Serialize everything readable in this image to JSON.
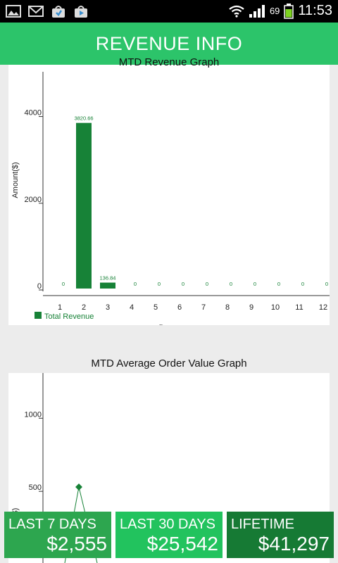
{
  "status_bar": {
    "battery": "69",
    "time": "11:53",
    "icons": [
      "gallery-icon",
      "gmail-icon",
      "store-icon",
      "store-update-icon",
      "wifi-icon",
      "signal-icon",
      "battery-icon"
    ]
  },
  "header": {
    "title": "REVENUE INFO"
  },
  "chart1": {
    "title": "MTD Revenue Graph",
    "chart_data": {
      "type": "bar",
      "title": "MTD Revenue Graph",
      "xlabel": "Days",
      "ylabel": "Amount($)",
      "ylim": [
        0,
        5000
      ],
      "yticks": [
        "0",
        "2000",
        "4000"
      ],
      "categories": [
        "1",
        "2",
        "3",
        "4",
        "5",
        "6",
        "7",
        "8",
        "9",
        "10",
        "11",
        "12"
      ],
      "series": [
        {
          "name": "Total Revenue",
          "color": "#178237",
          "values": [
            0,
            3820.66,
            136.84,
            0,
            0,
            0,
            0,
            0,
            0,
            0,
            0,
            0
          ],
          "labels": [
            "0",
            "3820.66",
            "136.84",
            "0",
            "0",
            "0",
            "0",
            "0",
            "0",
            "0",
            "0",
            "0"
          ]
        }
      ],
      "legend": "bottom-left",
      "grid": false
    }
  },
  "chart2": {
    "title": "MTD Average Order Value Graph",
    "chart_data": {
      "type": "line",
      "title": "MTD Average Order Value Graph",
      "ylabel": "AOV($)",
      "ylim": [
        0,
        1300
      ],
      "yticks": [
        "500",
        "1000"
      ],
      "color": "#178237",
      "visible_point": {
        "x": 2,
        "y": 520
      },
      "grid": false
    }
  },
  "stats": [
    {
      "label": "LAST 7 DAYS",
      "value": "$2,555",
      "color": "#2da64f"
    },
    {
      "label": "LAST 30 DAYS",
      "value": "$25,542",
      "color": "#22c35e"
    },
    {
      "label": "LIFETIME",
      "value": "$41,297",
      "color": "#167a34"
    }
  ]
}
